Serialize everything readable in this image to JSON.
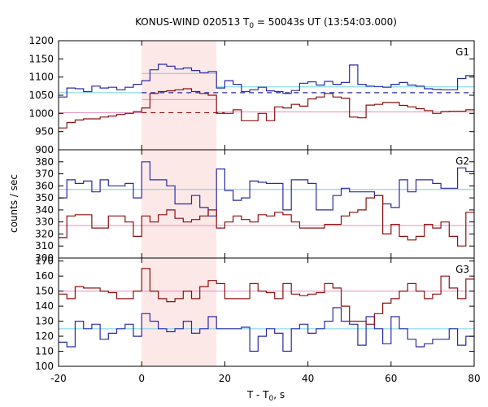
{
  "chart_data": {
    "type": "step",
    "title": "KONUS-WIND 020513 T",
    "title_sub": "0",
    "title_rest": " = 50043s UT (13:54:03.000)",
    "xlabel": "T - T",
    "xlabel_sub": "0",
    "xlabel_rest": ", s",
    "ylabel": "counts / sec",
    "xlim": [
      -20,
      80
    ],
    "x_ticks": [
      -20,
      0,
      20,
      40,
      60,
      80
    ],
    "x_tick_labels": [
      "-20",
      "0",
      "20",
      "40",
      "60",
      "80"
    ],
    "highlight_interval": [
      0,
      18
    ],
    "colors": {
      "blue": "#2a2aa8",
      "red": "#8b1010",
      "cyan": "#6fd3e6",
      "pink": "#e98fc0",
      "shade": "#fde8e8"
    },
    "panels": [
      {
        "label": "G1",
        "ylim": [
          900,
          1200
        ],
        "yticks": [
          900,
          950,
          1000,
          1050,
          1100,
          1150,
          1200
        ],
        "ytick_labels": [
          "900",
          "950",
          "1000",
          "1050",
          "1100",
          "1150",
          "1200"
        ],
        "x_edges": [
          -20,
          -18,
          -16,
          -14,
          -12,
          -10,
          -8,
          -6,
          -4,
          -2,
          0,
          2,
          4,
          6,
          8,
          10,
          12,
          14,
          16,
          18,
          20,
          22,
          24,
          26,
          28,
          30,
          32,
          34,
          36,
          38,
          40,
          42,
          44,
          46,
          48,
          50,
          52,
          54,
          56,
          58,
          60,
          62,
          64,
          66,
          68,
          70,
          72,
          74,
          76,
          78,
          80
        ],
        "series": [
          {
            "color": "blue",
            "values": [
              1045,
              1070,
              1068,
              1060,
              1075,
              1070,
              1072,
              1065,
              1072,
              1080,
              1090,
              1120,
              1135,
              1130,
              1122,
              1125,
              1118,
              1112,
              1115,
              1070,
              1090,
              1080,
              1060,
              1065,
              1072,
              1062,
              1060,
              1055,
              1063,
              1083,
              1087,
              1078,
              1088,
              1080,
              1085,
              1133,
              1080,
              1075,
              1074,
              1072,
              1080,
              1085,
              1078,
              1075,
              1068,
              1066,
              1065,
              1065,
              1096,
              1104
            ]
          },
          {
            "color": "red",
            "values": [
              960,
              975,
              982,
              985,
              985,
              990,
              993,
              997,
              1000,
              1005,
              1015,
              1055,
              1060,
              1062,
              1065,
              1068,
              1060,
              1055,
              1050,
              1000,
              1000,
              1010,
              980,
              980,
              1000,
              980,
              1018,
              1015,
              1025,
              1020,
              1040,
              1045,
              1055,
              1045,
              1042,
              990,
              988,
              1023,
              1025,
              1030,
              1030,
              1022,
              1018,
              1013,
              1008,
              1000,
              1005,
              1006,
              1006,
              1010
            ]
          }
        ],
        "reference_lines": [
          {
            "color": "cyan",
            "y": 1057,
            "x_from": -20,
            "x_to": 0
          },
          {
            "color": "cyan",
            "y": 1110,
            "x_from": 0,
            "x_to": 18
          },
          {
            "color": "cyan",
            "y": 1073,
            "x_from": 18,
            "x_to": 80
          },
          {
            "color": "pink",
            "y": 1002,
            "x_from": -20,
            "x_to": 0
          },
          {
            "color": "pink",
            "y": 1038,
            "x_from": 0,
            "x_to": 18
          },
          {
            "color": "pink",
            "y": 1004,
            "x_from": 18,
            "x_to": 80
          }
        ],
        "dashed_lines": [
          {
            "color": "blue",
            "y": 1057,
            "x_from": 0,
            "x_to": 80
          },
          {
            "color": "red",
            "y": 1002,
            "x_from": 0,
            "x_to": 20
          }
        ]
      },
      {
        "label": "G2",
        "ylim": [
          300,
          390
        ],
        "yticks": [
          300,
          310,
          320,
          330,
          340,
          350,
          360,
          370,
          380
        ],
        "ytick_labels": [
          "300",
          "310",
          "320",
          "330",
          "340",
          "350",
          "360",
          "370",
          "380"
        ],
        "x_edges": [
          -20,
          -18,
          -16,
          -14,
          -12,
          -10,
          -8,
          -6,
          -4,
          -2,
          0,
          2,
          4,
          6,
          8,
          10,
          12,
          14,
          16,
          18,
          20,
          22,
          24,
          26,
          28,
          30,
          32,
          34,
          36,
          38,
          40,
          42,
          44,
          46,
          48,
          50,
          52,
          54,
          56,
          58,
          60,
          62,
          64,
          66,
          68,
          70,
          72,
          74,
          76,
          78,
          80
        ],
        "series": [
          {
            "color": "blue",
            "values": [
              350,
              365,
              362,
              364,
              355,
              365,
              360,
              360,
              362,
              350,
              380,
              365,
              365,
              360,
              345,
              345,
              352,
              342,
              335,
              374,
              356,
              348,
              350,
              364,
              363,
              362,
              362,
              340,
              365,
              365,
              362,
              340,
              340,
              352,
              358,
              355,
              355,
              355,
              352,
              345,
              342,
              365,
              355,
              365,
              365,
              362,
              358,
              358,
              375,
              372
            ]
          },
          {
            "color": "red",
            "values": [
              317,
              335,
              336,
              336,
              325,
              325,
              335,
              335,
              330,
              318,
              335,
              330,
              336,
              340,
              333,
              330,
              332,
              335,
              340,
              325,
              330,
              335,
              332,
              330,
              336,
              335,
              338,
              336,
              330,
              325,
              325,
              325,
              328,
              328,
              335,
              338,
              340,
              350,
              352,
              320,
              328,
              318,
              315,
              318,
              328,
              325,
              330,
              318,
              310,
              338
            ]
          }
        ],
        "reference_lines": [
          {
            "color": "cyan",
            "y": 357,
            "x_from": -20,
            "x_to": 80
          },
          {
            "color": "pink",
            "y": 327,
            "x_from": -20,
            "x_to": 80
          }
        ],
        "dashed_lines": []
      },
      {
        "label": "G3",
        "ylim": [
          100,
          172
        ],
        "yticks": [
          100,
          110,
          120,
          130,
          140,
          150,
          160,
          170
        ],
        "ytick_labels": [
          "100",
          "110",
          "120",
          "130",
          "140",
          "150",
          "160",
          "170"
        ],
        "x_edges": [
          -20,
          -18,
          -16,
          -14,
          -12,
          -10,
          -8,
          -6,
          -4,
          -2,
          0,
          2,
          4,
          6,
          8,
          10,
          12,
          14,
          16,
          18,
          20,
          22,
          24,
          26,
          28,
          30,
          32,
          34,
          36,
          38,
          40,
          42,
          44,
          46,
          48,
          50,
          52,
          54,
          56,
          58,
          60,
          62,
          64,
          66,
          68,
          70,
          72,
          74,
          76,
          78,
          80
        ],
        "series": [
          {
            "color": "blue",
            "values": [
              116,
              113,
              130,
              125,
              128,
              118,
              122,
              125,
              128,
              120,
              135,
              130,
              125,
              123,
              125,
              130,
              122,
              125,
              133,
              125,
              125,
              125,
              126,
              110,
              120,
              125,
              122,
              110,
              125,
              128,
              122,
              125,
              130,
              139,
              130,
              128,
              114,
              133,
              125,
              115,
              133,
              125,
              118,
              113,
              115,
              118,
              118,
              125,
              114,
              120
            ]
          },
          {
            "color": "red",
            "values": [
              148,
              145,
              153,
              152,
              152,
              150,
              149,
              145,
              145,
              150,
              165,
              150,
              145,
              143,
              145,
              150,
              145,
              153,
              157,
              155,
              145,
              145,
              145,
              155,
              150,
              149,
              145,
              155,
              148,
              147,
              148,
              149,
              155,
              152,
              140,
              130,
              130,
              128,
              135,
              142,
              145,
              150,
              155,
              150,
              145,
              148,
              160,
              152,
              145,
              158
            ]
          }
        ],
        "reference_lines": [
          {
            "color": "cyan",
            "y": 125,
            "x_from": -20,
            "x_to": 80
          },
          {
            "color": "pink",
            "y": 150,
            "x_from": -20,
            "x_to": 80
          }
        ],
        "dashed_lines": []
      }
    ]
  }
}
